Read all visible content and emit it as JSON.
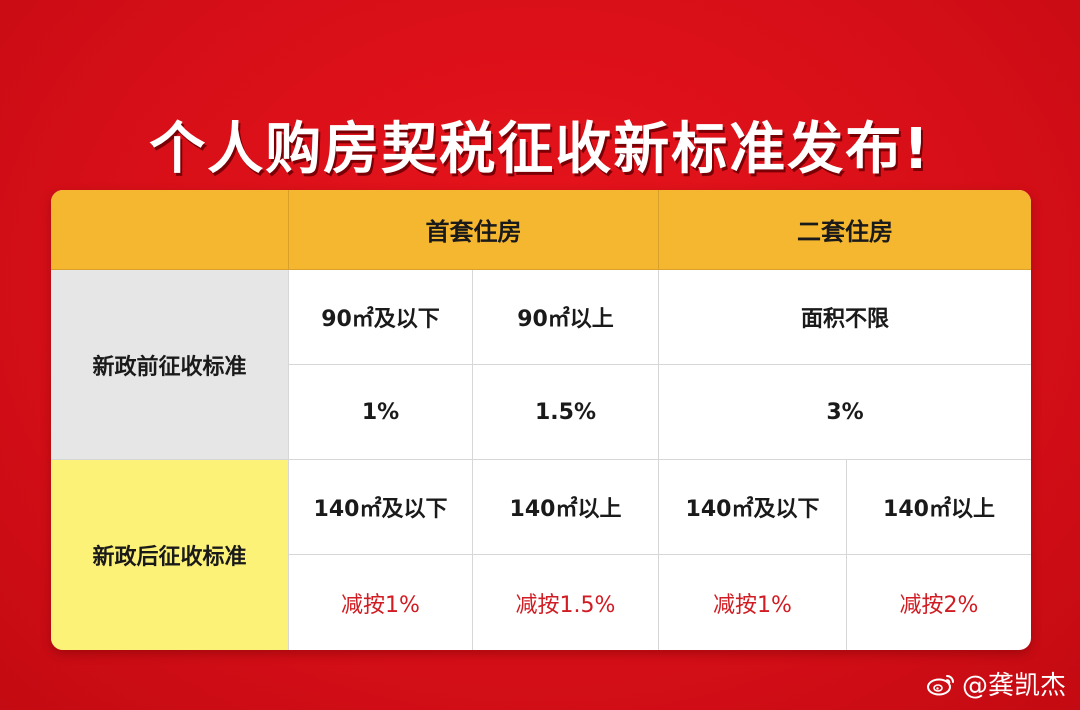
{
  "title": "个人购房契税征收新标准发布!",
  "header": {
    "first_home": "首套住房",
    "second_home": "二套住房"
  },
  "before": {
    "label": "新政前征收标准",
    "area_1": "90㎡及以下",
    "area_2": "90㎡以上",
    "area_3": "面积不限",
    "rate_1": "1%",
    "rate_2": "1.5%",
    "rate_3": "3%"
  },
  "after": {
    "label": "新政后征收标准",
    "area_1": "140㎡及以下",
    "area_2": "140㎡以上",
    "area_3": "140㎡及以下",
    "area_4": "140㎡以上",
    "rate_1": "减按1%",
    "rate_2": "减按1.5%",
    "rate_3": "减按1%",
    "rate_4": "减按2%"
  },
  "watermark": "@龚凯杰",
  "colors": {
    "background": "#d80f18",
    "header": "#f5b730",
    "before_label": "#e6e6e6",
    "after_label": "#fdf278",
    "new_rate_text": "#d01c22"
  }
}
